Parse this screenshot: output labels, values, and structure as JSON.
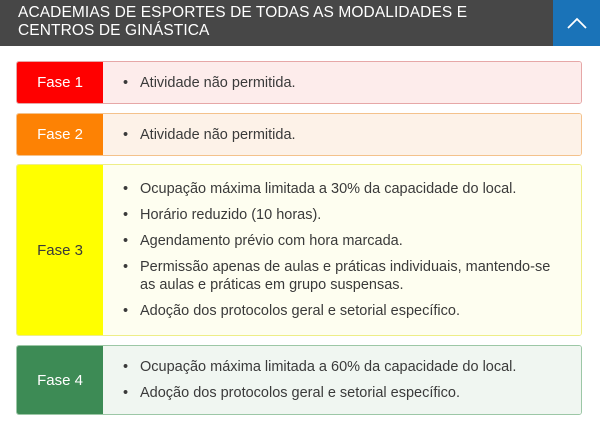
{
  "header": {
    "title": "ACADEMIAS DE ESPORTES DE TODAS AS MODALIDADES E CENTROS DE GINÁSTICA",
    "toggle_icon": "chevron-up-icon"
  },
  "colors": {
    "header_bg": "#474747",
    "toggle_bg": "#1a73b8",
    "fase1": "#ff0000",
    "fase2": "#fd8204",
    "fase3": "#ffff00",
    "fase4": "#3d8b55"
  },
  "phases": [
    {
      "label": "Fase 1",
      "items": [
        "Atividade não permitida."
      ]
    },
    {
      "label": "Fase 2",
      "items": [
        "Atividade não permitida."
      ]
    },
    {
      "label": "Fase 3",
      "items": [
        "Ocupação máxima limitada a 30% da capacidade do local.",
        "Horário reduzido (10 horas).",
        "Agendamento prévio com hora marcada.",
        "Permissão apenas de aulas e práticas individuais, mantendo-se as aulas e práticas em grupo suspensas.",
        "Adoção dos protocolos geral e setorial específico."
      ]
    },
    {
      "label": "Fase 4",
      "items": [
        "Ocupação máxima limitada a 60% da capacidade do local.",
        "Adoção dos protocolos geral e setorial específico."
      ]
    }
  ]
}
